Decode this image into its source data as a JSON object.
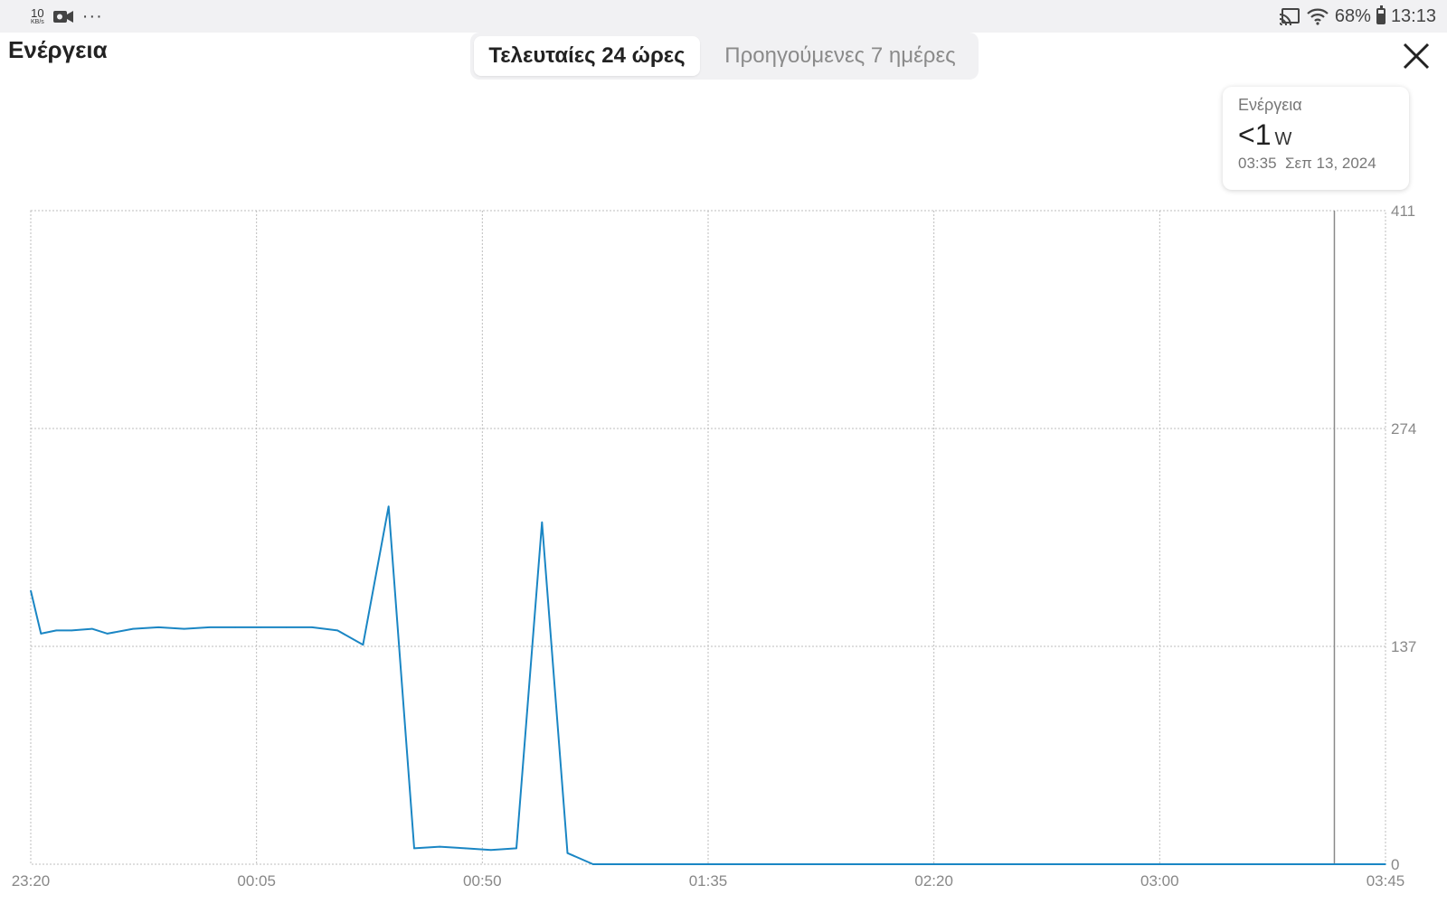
{
  "status_bar": {
    "net_speed_value": "10",
    "net_speed_unit": "KB/s",
    "more_label": "···",
    "battery": "68%",
    "time": "13:13",
    "icons": [
      "video-camera-icon",
      "cast-icon",
      "wifi-icon",
      "battery-icon"
    ]
  },
  "header": {
    "title": "Ενέργεια",
    "tabs": [
      {
        "label": "Τελευταίες 24 ώρες",
        "active": true
      },
      {
        "label": "Προηγούμενες 7 ημέρες",
        "active": false
      }
    ],
    "close_icon": "close-icon"
  },
  "tooltip": {
    "label": "Ενέργεια",
    "value": "<1",
    "unit": "W",
    "time": "03:35",
    "date": "Σεπ 13, 2024"
  },
  "chart_data": {
    "type": "line",
    "x_ticks": [
      "23:20",
      "00:05",
      "00:50",
      "01:35",
      "02:20",
      "03:00",
      "03:45"
    ],
    "y_ticks": [
      "0",
      "137",
      "274",
      "411"
    ],
    "ylim": [
      0,
      411
    ],
    "grid": true,
    "crosshair_x": "03:35",
    "line_color": "#1a86c4",
    "series": [
      {
        "x": [
          "23:20",
          "23:22",
          "23:25",
          "23:28",
          "23:32",
          "23:35",
          "23:40",
          "23:45",
          "23:50",
          "23:55",
          "00:00",
          "00:05",
          "00:10",
          "00:15",
          "00:20",
          "00:25",
          "00:30",
          "00:35",
          "00:40",
          "00:45",
          "00:50",
          "00:55",
          "01:00",
          "01:05",
          "01:10",
          "01:15",
          "01:20",
          "01:35",
          "02:20",
          "03:00",
          "03:35",
          "03:45"
        ],
        "values": [
          172,
          145,
          147,
          147,
          148,
          145,
          148,
          149,
          148,
          149,
          149,
          149,
          149,
          149,
          147,
          138,
          225,
          10,
          11,
          10,
          9,
          10,
          215,
          7,
          0,
          0,
          0,
          0,
          0,
          0,
          0,
          0
        ]
      }
    ]
  }
}
